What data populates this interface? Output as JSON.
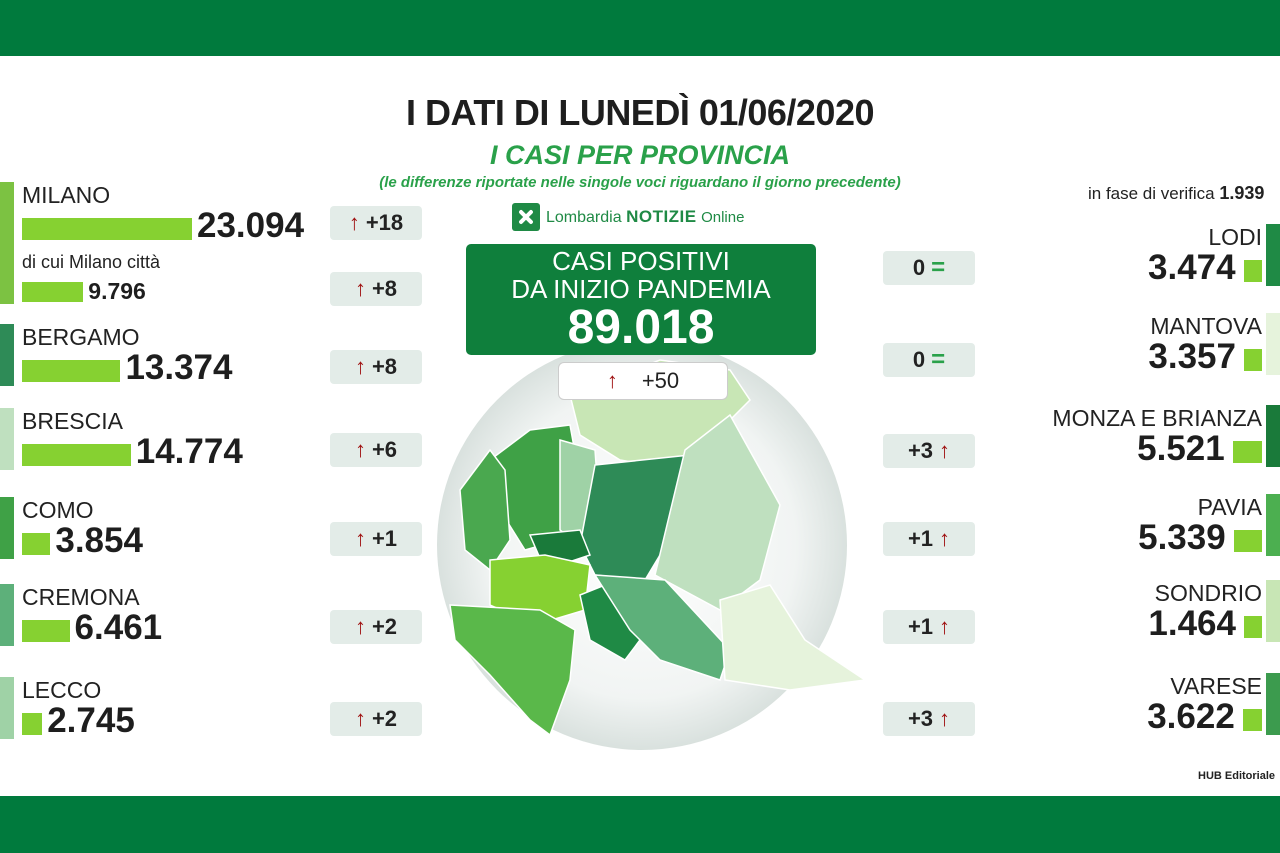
{
  "header": {
    "title": "I DATI DI LUNEDÌ 01/06/2020",
    "subtitle": "I CASI PER PROVINCIA",
    "note": "(le differenze riportate nelle singole voci riguardano il giorno precedente)"
  },
  "brand": {
    "name": "Lombardia",
    "notizie": "NOTIZIE",
    "online": "Online"
  },
  "total": {
    "line1": "CASI POSITIVI",
    "line2": "DA INIZIO PANDEMIA",
    "value": "89.018",
    "delta": "+50",
    "delta_arrow": "↑"
  },
  "verify": {
    "label": "in fase di verifica",
    "value": "1.939"
  },
  "credit": "HUB Editoriale",
  "colors": {
    "band": "#007a3d",
    "bar": "#86d131",
    "title_green": "#2aa14a",
    "up_arrow": "#a01313"
  },
  "chart_data": {
    "type": "bar",
    "title": "I CASI PER PROVINCIA",
    "unit": "casi positivi",
    "left": [
      {
        "name": "MILANO",
        "value": 23094,
        "label": "23.094",
        "delta": "+18",
        "trend": "up",
        "color": "#7cc242",
        "sub": {
          "name": "di cui Milano città",
          "value": 9796,
          "label": "9.796",
          "delta": "+8",
          "trend": "up"
        }
      },
      {
        "name": "BERGAMO",
        "value": 13374,
        "label": "13.374",
        "delta": "+8",
        "trend": "up",
        "color": "#2e8b57"
      },
      {
        "name": "BRESCIA",
        "value": 14774,
        "label": "14.774",
        "delta": "+6",
        "trend": "up",
        "color": "#bfe0bf"
      },
      {
        "name": "COMO",
        "value": 3854,
        "label": "3.854",
        "delta": "+1",
        "trend": "up",
        "color": "#3fa146"
      },
      {
        "name": "CREMONA",
        "value": 6461,
        "label": "6.461",
        "delta": "+2",
        "trend": "up",
        "color": "#5db07a"
      },
      {
        "name": "LECCO",
        "value": 2745,
        "label": "2.745",
        "delta": "+2",
        "trend": "up",
        "color": "#9fd2a6"
      }
    ],
    "right": [
      {
        "name": "LODI",
        "value": 3474,
        "label": "3.474",
        "delta": "0",
        "trend": "equal",
        "color": "#1f8a45"
      },
      {
        "name": "MANTOVA",
        "value": 3357,
        "label": "3.357",
        "delta": "0",
        "trend": "equal",
        "color": "#e6f3dc"
      },
      {
        "name": "MONZA E BRIANZA",
        "value": 5521,
        "label": "5.521",
        "delta": "+3",
        "trend": "up",
        "color": "#1a7a3a"
      },
      {
        "name": "PAVIA",
        "value": 5339,
        "label": "5.339",
        "delta": "+1",
        "trend": "up",
        "color": "#4caf50"
      },
      {
        "name": "SONDRIO",
        "value": 1464,
        "label": "1.464",
        "delta": "+1",
        "trend": "up",
        "color": "#c8e6b5"
      },
      {
        "name": "VARESE",
        "value": 3622,
        "label": "3.622",
        "delta": "+3",
        "trend": "up",
        "color": "#3c9b4e"
      }
    ]
  }
}
